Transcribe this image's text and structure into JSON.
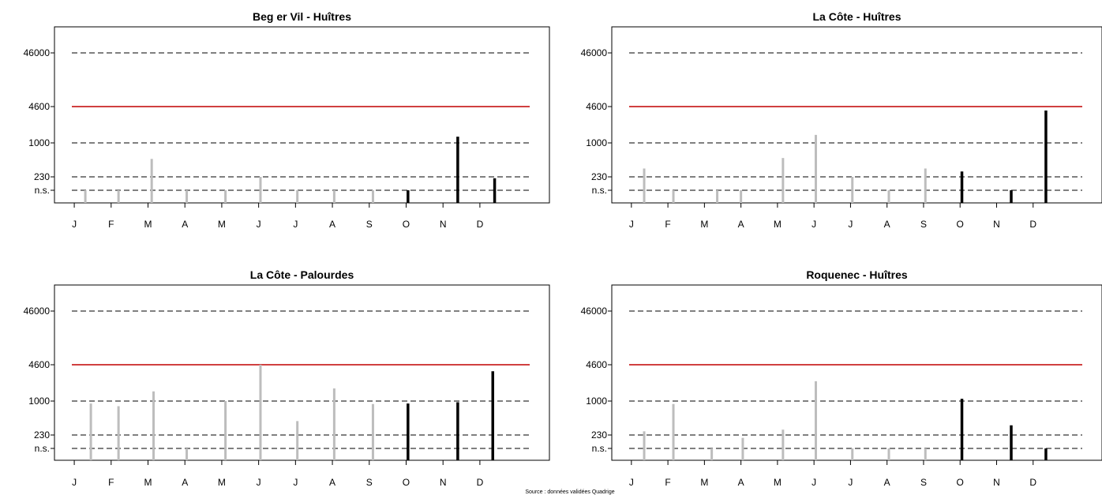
{
  "source_note": "Source : données validées Quadrige",
  "months": [
    "J",
    "F",
    "M",
    "A",
    "M",
    "J",
    "J",
    "A",
    "S",
    "O",
    "N",
    "D"
  ],
  "y_ticks": [
    "n.s.",
    "230",
    "1000",
    "4600",
    "46000"
  ],
  "colors": {
    "past": "#bdbdbd",
    "current": "#000000",
    "threshold": "#c00000",
    "ref": "#000000"
  },
  "chart_data": [
    {
      "type": "bar",
      "title": "Beg er Vil - Huîtres",
      "yscale": "log",
      "reference_lines": [
        46000,
        1000,
        230,
        "n.s."
      ],
      "threshold_line": 4600,
      "series": [
        {
          "group": "past",
          "points": [
            {
              "m": 0.3,
              "v": "n.s."
            },
            {
              "m": 1.2,
              "v": "n.s."
            },
            {
              "m": 2.1,
              "v": 500
            },
            {
              "m": 3.05,
              "v": "n.s."
            },
            {
              "m": 4.1,
              "v": "n.s."
            },
            {
              "m": 5.05,
              "v": 230
            },
            {
              "m": 6.05,
              "v": "n.s."
            },
            {
              "m": 7.05,
              "v": "n.s."
            },
            {
              "m": 8.1,
              "v": "n.s."
            }
          ]
        },
        {
          "group": "current",
          "points": [
            {
              "m": 9.05,
              "v": "n.s."
            },
            {
              "m": 10.4,
              "v": 1300
            },
            {
              "m": 11.4,
              "v": 220
            }
          ]
        }
      ]
    },
    {
      "type": "bar",
      "title": "La Côte - Huîtres",
      "yscale": "log",
      "reference_lines": [
        46000,
        1000,
        230,
        "n.s."
      ],
      "threshold_line": 4600,
      "series": [
        {
          "group": "past",
          "points": [
            {
              "m": 0.35,
              "v": 330
            },
            {
              "m": 1.15,
              "v": "n.s."
            },
            {
              "m": 2.35,
              "v": "n.s."
            },
            {
              "m": 3.0,
              "v": "n.s."
            },
            {
              "m": 4.15,
              "v": 520
            },
            {
              "m": 5.05,
              "v": 1400
            },
            {
              "m": 6.05,
              "v": 230
            },
            {
              "m": 7.05,
              "v": "n.s."
            },
            {
              "m": 8.05,
              "v": 330
            }
          ]
        },
        {
          "group": "current",
          "points": [
            {
              "m": 9.05,
              "v": 290
            },
            {
              "m": 10.4,
              "v": "n.s."
            },
            {
              "m": 11.35,
              "v": 3900
            }
          ]
        }
      ]
    },
    {
      "type": "bar",
      "title": "La Côte - Palourdes",
      "yscale": "log",
      "reference_lines": [
        46000,
        1000,
        230,
        "n.s."
      ],
      "threshold_line": 4600,
      "series": [
        {
          "group": "past",
          "points": [
            {
              "m": 0.45,
              "v": 900
            },
            {
              "m": 1.2,
              "v": 800
            },
            {
              "m": 2.15,
              "v": 1500
            },
            {
              "m": 3.05,
              "v": "n.s."
            },
            {
              "m": 4.1,
              "v": 1000
            },
            {
              "m": 5.05,
              "v": 4600
            },
            {
              "m": 6.05,
              "v": 420
            },
            {
              "m": 7.05,
              "v": 1700
            },
            {
              "m": 8.1,
              "v": 880
            }
          ]
        },
        {
          "group": "current",
          "points": [
            {
              "m": 9.05,
              "v": 900
            },
            {
              "m": 10.4,
              "v": 950
            },
            {
              "m": 11.35,
              "v": 3500
            }
          ]
        }
      ]
    },
    {
      "type": "bar",
      "title": "Roquenec - Huîtres",
      "yscale": "log",
      "reference_lines": [
        46000,
        1000,
        230,
        "n.s."
      ],
      "threshold_line": 4600,
      "series": [
        {
          "group": "past",
          "points": [
            {
              "m": 0.35,
              "v": 270
            },
            {
              "m": 1.15,
              "v": 880
            },
            {
              "m": 2.2,
              "v": "n.s."
            },
            {
              "m": 3.05,
              "v": 210
            },
            {
              "m": 4.15,
              "v": 290
            },
            {
              "m": 5.05,
              "v": 2300
            },
            {
              "m": 6.05,
              "v": "n.s."
            },
            {
              "m": 7.05,
              "v": "n.s."
            },
            {
              "m": 8.05,
              "v": "n.s."
            }
          ]
        },
        {
          "group": "current",
          "points": [
            {
              "m": 9.05,
              "v": 1100
            },
            {
              "m": 10.4,
              "v": 350
            },
            {
              "m": 11.35,
              "v": "n.s."
            }
          ]
        }
      ]
    }
  ]
}
